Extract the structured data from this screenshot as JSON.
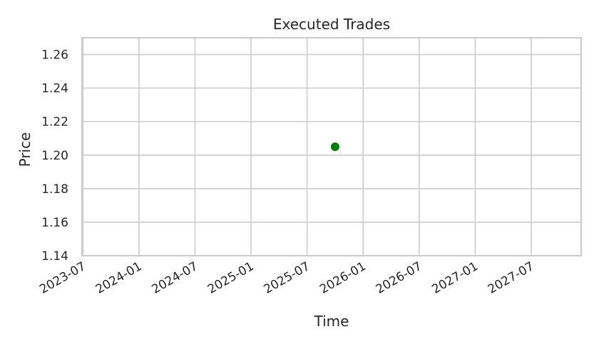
{
  "chart_data": {
    "type": "scatter",
    "title": "Executed Trades",
    "xlabel": "Time",
    "ylabel": "Price",
    "x_ticks": [
      "2023-07",
      "2024-01",
      "2024-07",
      "2025-01",
      "2025-07",
      "2026-01",
      "2026-07",
      "2027-01",
      "2027-07"
    ],
    "y_ticks": [
      1.14,
      1.16,
      1.18,
      1.2,
      1.22,
      1.24,
      1.26
    ],
    "xlim": [
      "2023-07",
      "2027-12"
    ],
    "ylim": [
      1.14,
      1.27
    ],
    "grid": true,
    "series": [
      {
        "color": "#008000",
        "points": [
          {
            "x": "2025-10",
            "y": 1.205
          }
        ]
      }
    ]
  }
}
